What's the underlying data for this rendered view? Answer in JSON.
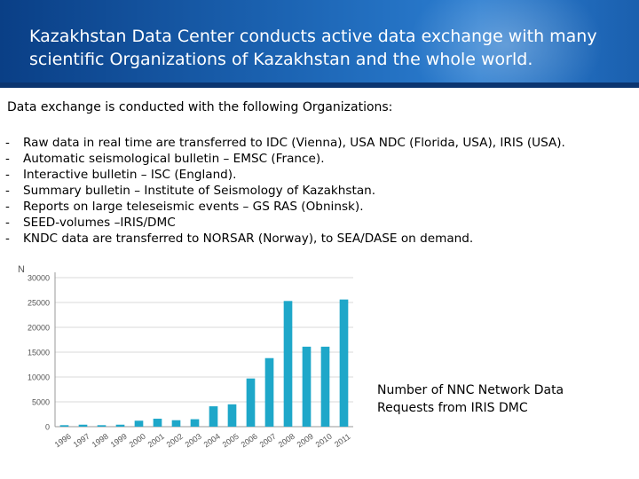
{
  "header": {
    "title": "Kazakhstan Data Center conducts active data exchange with many scientific Organizations of Kazakhstan and the whole world."
  },
  "intro": "Data exchange is conducted with the following Organizations:",
  "items": [
    "Raw data in real time are transferred to IDC (Vienna), USA NDC (Florida, USA), IRIS (USA).",
    "Automatic seismological bulletin – EMSC (France).",
    "Interactive bulletin – ISC (England).",
    "Summary bulletin – Institute of Seismology of Kazakhstan.",
    "Reports on large teleseismic events – GS RAS (Obninsk).",
    "SEED-volumes –IRIS/DMC",
    "KNDC data are transferred to NORSAR (Norway), to SEA/DASE on demand."
  ],
  "bullet": "-",
  "caption": "Number of NNC Network Data Requests from IRIS DMC",
  "colors": {
    "bar": "#1ea7c9",
    "header": "#1c64b3",
    "grid": "#d9d9d9"
  },
  "chart_data": {
    "type": "bar",
    "ylabel": "N",
    "categories": [
      "1996",
      "1997",
      "1998",
      "1999",
      "2000",
      "2001",
      "2002",
      "2003",
      "2004",
      "2005",
      "2006",
      "2007",
      "2008",
      "2009",
      "2010",
      "2011"
    ],
    "values": [
      300,
      400,
      300,
      400,
      1200,
      1600,
      1300,
      1500,
      4100,
      4500,
      9700,
      13800,
      25300,
      16100,
      16100,
      25600
    ],
    "yticks": [
      0,
      5000,
      10000,
      15000,
      20000,
      25000,
      30000
    ],
    "ylim": [
      0,
      30000
    ],
    "grid": true,
    "legend": false
  }
}
